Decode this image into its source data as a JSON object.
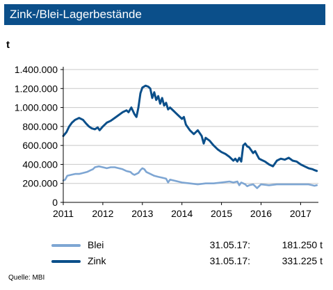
{
  "header": {
    "title": "Zink-/Blei-Lagerbestände",
    "color": "#0b4f8a"
  },
  "unit": "t",
  "legend": [
    {
      "name": "Blei",
      "date": "31.05.17:",
      "value": "181.250 t",
      "color": "#7ea6d3"
    },
    {
      "name": "Zink",
      "date": "31.05.17:",
      "value": "331.225 t",
      "color": "#0b4f8a"
    }
  ],
  "source": "Quelle:  MBI",
  "chart_data": {
    "type": "line",
    "title": "Zink-/Blei-Lagerbestände",
    "ylabel": "t",
    "xlim": [
      2011,
      2017.45
    ],
    "ylim": [
      0,
      1400000
    ],
    "yticks": [
      0,
      200000,
      400000,
      600000,
      800000,
      1000000,
      1200000,
      1400000
    ],
    "ytick_labels": [
      "0",
      "200.000",
      "400.000",
      "600.000",
      "800.000",
      "1.000.000",
      "1.200.000",
      "1.400.000"
    ],
    "xticks": [
      2011,
      2012,
      2013,
      2014,
      2015,
      2016,
      2017
    ],
    "xtick_labels": [
      "2011",
      "2012",
      "2013",
      "2014",
      "2015",
      "2016",
      "2017"
    ],
    "grid": "horizontal",
    "legend_position": "bottom",
    "series": [
      {
        "name": "Zink",
        "color": "#0b4f8a",
        "x": [
          2011.0,
          2011.08,
          2011.15,
          2011.22,
          2011.3,
          2011.4,
          2011.5,
          2011.58,
          2011.65,
          2011.72,
          2011.8,
          2011.87,
          2011.92,
          2012.0,
          2012.1,
          2012.2,
          2012.3,
          2012.4,
          2012.5,
          2012.6,
          2012.65,
          2012.72,
          2012.8,
          2012.85,
          2012.9,
          2012.95,
          2013.0,
          2013.08,
          2013.15,
          2013.2,
          2013.25,
          2013.3,
          2013.35,
          2013.4,
          2013.45,
          2013.5,
          2013.55,
          2013.6,
          2013.65,
          2013.7,
          2013.8,
          2013.9,
          2014.0,
          2014.05,
          2014.1,
          2014.2,
          2014.3,
          2014.4,
          2014.5,
          2014.55,
          2014.6,
          2014.7,
          2014.8,
          2014.9,
          2015.0,
          2015.1,
          2015.2,
          2015.3,
          2015.35,
          2015.4,
          2015.45,
          2015.5,
          2015.55,
          2015.6,
          2015.65,
          2015.7,
          2015.75,
          2015.8,
          2015.85,
          2015.9,
          2015.95,
          2016.0,
          2016.1,
          2016.2,
          2016.3,
          2016.4,
          2016.5,
          2016.6,
          2016.7,
          2016.8,
          2016.9,
          2017.0,
          2017.1,
          2017.2,
          2017.3,
          2017.35,
          2017.41
        ],
        "values": [
          700000,
          740000,
          800000,
          840000,
          870000,
          890000,
          870000,
          830000,
          800000,
          780000,
          770000,
          790000,
          760000,
          800000,
          840000,
          860000,
          890000,
          920000,
          950000,
          970000,
          950000,
          1000000,
          930000,
          900000,
          1000000,
          1150000,
          1210000,
          1230000,
          1220000,
          1200000,
          1100000,
          1160000,
          1080000,
          1120000,
          1040000,
          1100000,
          1020000,
          1050000,
          980000,
          1000000,
          960000,
          920000,
          880000,
          900000,
          820000,
          760000,
          720000,
          760000,
          700000,
          620000,
          680000,
          650000,
          600000,
          560000,
          530000,
          510000,
          480000,
          440000,
          460000,
          430000,
          470000,
          430000,
          600000,
          620000,
          590000,
          580000,
          550000,
          520000,
          540000,
          500000,
          460000,
          450000,
          430000,
          400000,
          380000,
          440000,
          460000,
          450000,
          470000,
          440000,
          430000,
          400000,
          380000,
          360000,
          350000,
          340000,
          331225
        ]
      },
      {
        "name": "Blei",
        "color": "#7ea6d3",
        "x": [
          2011.0,
          2011.05,
          2011.1,
          2011.2,
          2011.3,
          2011.4,
          2011.5,
          2011.6,
          2011.7,
          2011.75,
          2011.8,
          2011.9,
          2012.0,
          2012.1,
          2012.2,
          2012.3,
          2012.4,
          2012.5,
          2012.6,
          2012.7,
          2012.75,
          2012.8,
          2012.9,
          2012.95,
          2013.0,
          2013.05,
          2013.1,
          2013.2,
          2013.3,
          2013.4,
          2013.5,
          2013.6,
          2013.65,
          2013.7,
          2013.8,
          2013.9,
          2014.0,
          2014.2,
          2014.4,
          2014.6,
          2014.8,
          2015.0,
          2015.2,
          2015.3,
          2015.4,
          2015.45,
          2015.5,
          2015.55,
          2015.6,
          2015.65,
          2015.7,
          2015.8,
          2015.9,
          2016.0,
          2016.2,
          2016.4,
          2016.6,
          2016.8,
          2017.0,
          2017.2,
          2017.3,
          2017.35,
          2017.41
        ],
        "values": [
          230000,
          240000,
          280000,
          290000,
          300000,
          300000,
          310000,
          320000,
          340000,
          350000,
          370000,
          380000,
          370000,
          360000,
          370000,
          370000,
          360000,
          350000,
          330000,
          320000,
          300000,
          290000,
          310000,
          340000,
          360000,
          350000,
          320000,
          300000,
          280000,
          270000,
          260000,
          250000,
          210000,
          240000,
          230000,
          220000,
          210000,
          200000,
          190000,
          200000,
          200000,
          210000,
          220000,
          210000,
          220000,
          180000,
          210000,
          200000,
          190000,
          170000,
          180000,
          190000,
          150000,
          190000,
          180000,
          190000,
          190000,
          190000,
          190000,
          190000,
          180000,
          175000,
          181250
        ]
      }
    ]
  }
}
